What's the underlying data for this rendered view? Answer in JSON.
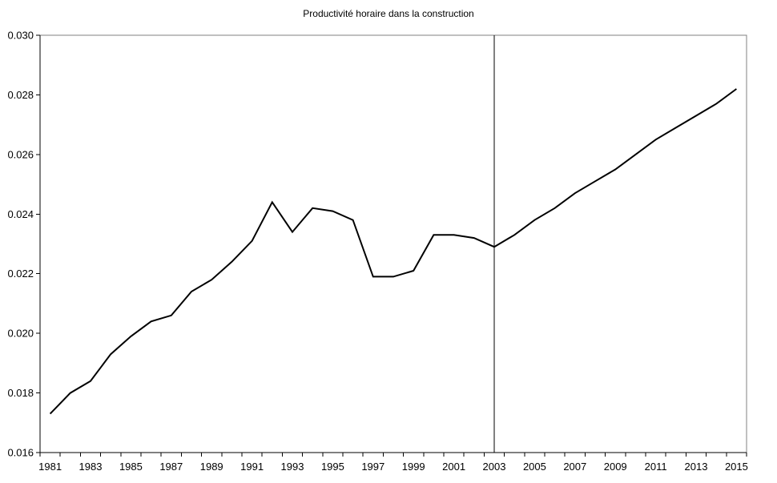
{
  "chart_data": {
    "type": "line",
    "title": "Productivité horaire dans la construction",
    "xlabel": "",
    "ylabel": "",
    "x": [
      1981,
      1982,
      1983,
      1984,
      1985,
      1986,
      1987,
      1988,
      1989,
      1990,
      1991,
      1992,
      1993,
      1994,
      1995,
      1996,
      1997,
      1998,
      1999,
      2000,
      2001,
      2002,
      2003,
      2004,
      2005,
      2006,
      2007,
      2008,
      2009,
      2010,
      2011,
      2012,
      2013,
      2014,
      2015
    ],
    "series": [
      {
        "name": "Productivité horaire",
        "values": [
          0.0173,
          0.018,
          0.0184,
          0.0193,
          0.0199,
          0.0204,
          0.0206,
          0.0214,
          0.0218,
          0.0224,
          0.0231,
          0.0244,
          0.0234,
          0.0242,
          0.0241,
          0.0238,
          0.0219,
          0.0219,
          0.0221,
          0.0233,
          0.0233,
          0.0232,
          0.0229,
          0.0233,
          0.0238,
          0.0242,
          0.0247,
          0.0251,
          0.0255,
          0.026,
          0.0265,
          0.0269,
          0.0273,
          0.0277,
          0.0282
        ]
      }
    ],
    "ylim": [
      0.016,
      0.03
    ],
    "y_ticks": [
      0.016,
      0.018,
      0.02,
      0.022,
      0.024,
      0.026,
      0.028,
      0.03
    ],
    "y_tick_labels": [
      "0.016",
      "0.018",
      "0.020",
      "0.022",
      "0.024",
      "0.026",
      "0.028",
      "0.030"
    ],
    "x_tick_label_years": [
      1981,
      1983,
      1985,
      1987,
      1989,
      1991,
      1993,
      1995,
      1997,
      1999,
      2001,
      2003,
      2005,
      2007,
      2009,
      2011,
      2013,
      2015
    ],
    "vline_x": 2003,
    "grid": false,
    "legend_position": "none",
    "colors": {
      "line": "#000000",
      "axis": "#000000",
      "frame": "#808080",
      "background": "#ffffff",
      "text": "#000000"
    }
  }
}
